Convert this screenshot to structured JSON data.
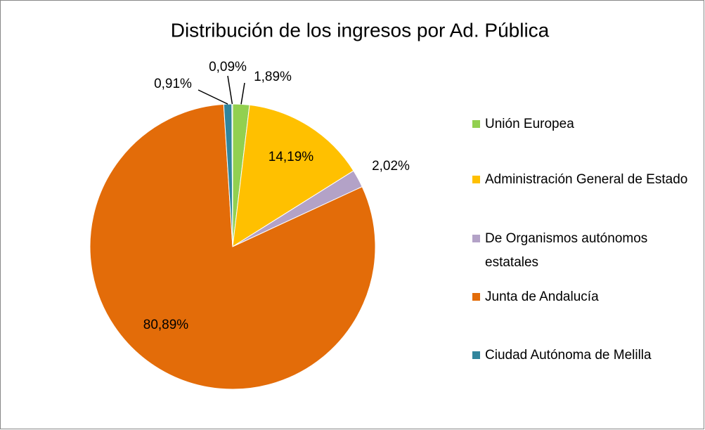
{
  "chart_data": {
    "type": "pie",
    "title": "Distribución de los ingresos por Ad. Pública",
    "categories": [
      "Unión Europea",
      "Administración General de Estado",
      "De Organismos autónomos estatales",
      "Junta de Andalucía",
      "Ciudad Autónoma de Melilla",
      null
    ],
    "values": [
      1.89,
      14.19,
      2.02,
      80.89,
      0.91,
      0.09
    ],
    "value_labels": [
      "1,89%",
      "14,19%",
      "2,02%",
      "80,89%",
      "0,91%",
      "0,09%"
    ],
    "colors": [
      "#92d050",
      "#ffc000",
      "#b3a2c7",
      "#e36c09",
      "#31859c",
      "#4f81bd"
    ],
    "legend": "right"
  }
}
